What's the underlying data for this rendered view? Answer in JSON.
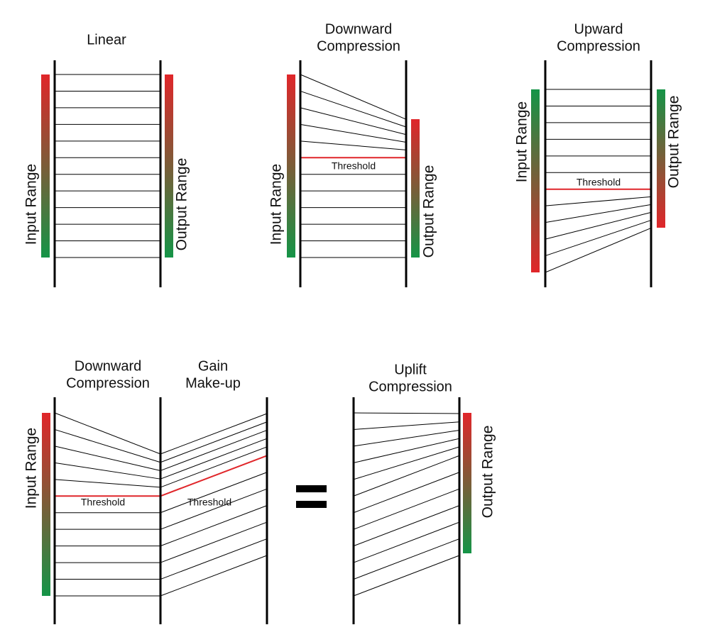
{
  "panels": [
    {
      "title": [
        "Linear"
      ],
      "input_label": "Input Range",
      "output_label": "Output Range"
    },
    {
      "title": [
        "Downward",
        "Compression"
      ],
      "input_label": "Input Range",
      "output_label": "Output Range",
      "threshold_label": "Threshold"
    },
    {
      "title": [
        "Upward",
        "Compression"
      ],
      "input_label": "Input Range",
      "output_label": "Output Range",
      "threshold_label": "Threshold"
    },
    {
      "title": [
        "Downward",
        "Compression"
      ],
      "input_label": "Input Range",
      "threshold_label": "Threshold"
    },
    {
      "title": [
        "Gain",
        "Make-up"
      ],
      "threshold_label": "Threshold"
    },
    {
      "title": [
        "Uplift",
        "Compression"
      ],
      "output_label": "Output Range"
    }
  ]
}
